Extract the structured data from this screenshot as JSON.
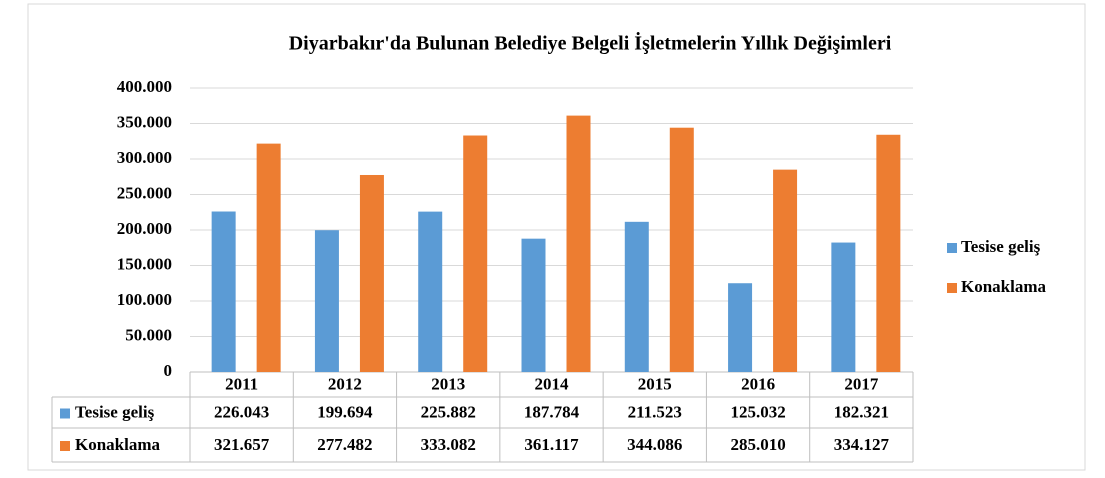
{
  "chart_data": {
    "type": "bar",
    "title": "Diyarbakır'da Bulunan Belediye Belgeli İşletmelerin Yıllık Değişimleri",
    "categories": [
      "2011",
      "2012",
      "2013",
      "2014",
      "2015",
      "2016",
      "2017"
    ],
    "series": [
      {
        "name": "Tesise geliş",
        "color": "#5b9bd5",
        "values": [
          226043,
          199694,
          225882,
          187784,
          211523,
          125032,
          182321
        ],
        "value_labels": [
          "226.043",
          "199.694",
          "225.882",
          "187.784",
          "211.523",
          "125.032",
          "182.321"
        ]
      },
      {
        "name": "Konaklama",
        "color": "#ed7d31",
        "values": [
          321657,
          277482,
          333082,
          361117,
          344086,
          285010,
          334127
        ],
        "value_labels": [
          "321.657",
          "277.482",
          "333.082",
          "361.117",
          "344.086",
          "285.010",
          "334.127"
        ]
      }
    ],
    "ylim": [
      0,
      400000
    ],
    "yticks": [
      0,
      {
        "value": 50000,
        "label": "50.000"
      },
      {
        "value": 100000,
        "label": "100.000"
      },
      {
        "value": 150000,
        "label": "150.000"
      },
      {
        "value": 200000,
        "label": "200.000"
      },
      {
        "value": 250000,
        "label": "250.000"
      },
      {
        "value": 300000,
        "label": "300.000"
      },
      {
        "value": 350000,
        "label": "350.000"
      },
      {
        "value": 400000,
        "label": "400.000"
      }
    ],
    "grid": true
  }
}
